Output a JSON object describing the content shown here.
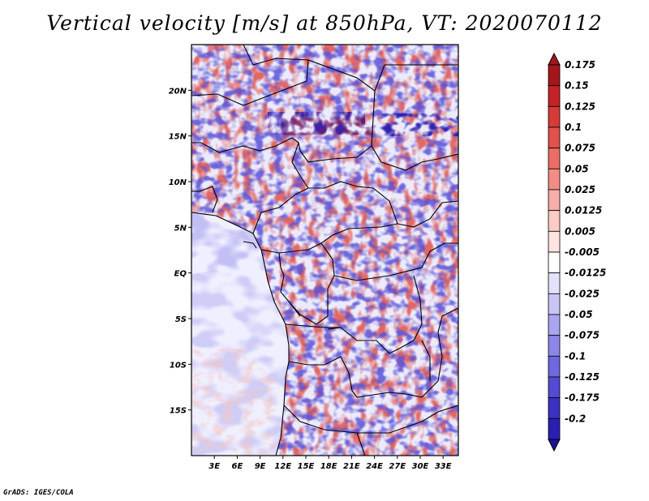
{
  "title": "Vertical velocity [m/s] at 850hPa, VT: 2020070112",
  "credit": "GrADS: IGES/COLA",
  "map": {
    "lon_range": [
      0,
      35
    ],
    "lat_range": [
      -20,
      25
    ],
    "lat_ticks": [
      {
        "value": 20,
        "label": "20N"
      },
      {
        "value": 15,
        "label": "15N"
      },
      {
        "value": 10,
        "label": "10N"
      },
      {
        "value": 5,
        "label": "5N"
      },
      {
        "value": 0,
        "label": "EQ"
      },
      {
        "value": -5,
        "label": "5S"
      },
      {
        "value": -10,
        "label": "10S"
      },
      {
        "value": -15,
        "label": "15S"
      }
    ],
    "lon_ticks": [
      {
        "value": 3,
        "label": "3E"
      },
      {
        "value": 6,
        "label": "6E"
      },
      {
        "value": 9,
        "label": "9E"
      },
      {
        "value": 12,
        "label": "12E"
      },
      {
        "value": 15,
        "label": "15E"
      },
      {
        "value": 18,
        "label": "18E"
      },
      {
        "value": 21,
        "label": "21E"
      },
      {
        "value": 24,
        "label": "24E"
      },
      {
        "value": 27,
        "label": "27E"
      },
      {
        "value": 30,
        "label": "30E"
      },
      {
        "value": 33,
        "label": "33E"
      }
    ]
  },
  "colorbar": {
    "levels": [
      {
        "label": "0.175",
        "color": "#a4161c"
      },
      {
        "label": "0.15",
        "color": "#c22327"
      },
      {
        "label": "0.125",
        "color": "#d63a37"
      },
      {
        "label": "0.1",
        "color": "#e0524b"
      },
      {
        "label": "0.075",
        "color": "#ea6e66"
      },
      {
        "label": "0.05",
        "color": "#f28d86"
      },
      {
        "label": "0.025",
        "color": "#f7aea8"
      },
      {
        "label": "0.0125",
        "color": "#fbcbc6"
      },
      {
        "label": "0.005",
        "color": "#fde4e1"
      },
      {
        "label": "-0.005",
        "color": "#ffffff"
      },
      {
        "label": "-0.0125",
        "color": "#e3e2fb"
      },
      {
        "label": "-0.025",
        "color": "#c9c6f6"
      },
      {
        "label": "-0.05",
        "color": "#aaa5ef"
      },
      {
        "label": "-0.075",
        "color": "#8c86e8"
      },
      {
        "label": "-0.1",
        "color": "#6f68de"
      },
      {
        "label": "-0.125",
        "color": "#534bd2"
      },
      {
        "label": "-0.175",
        "color": "#3a31c2"
      },
      {
        "label": "-0.2",
        "color": "#2a1fb0"
      }
    ],
    "top_color": "#a4161c",
    "bottom_color": "#1f139e"
  }
}
